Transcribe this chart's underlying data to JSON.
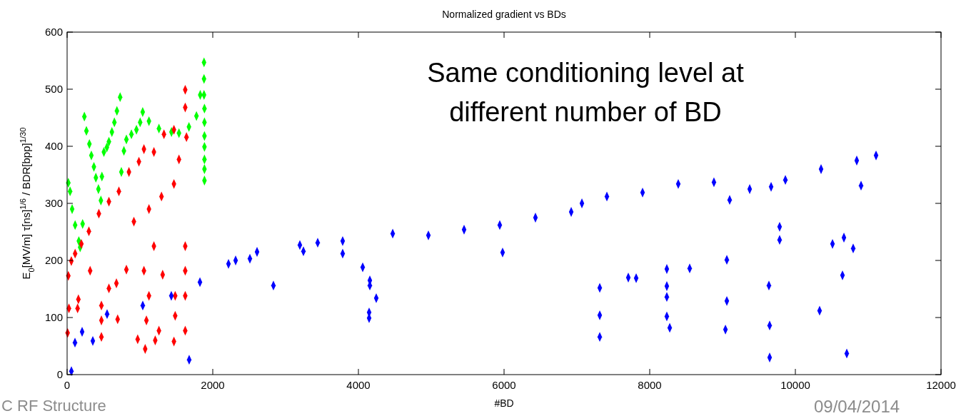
{
  "chart_data": {
    "type": "scatter",
    "title": "Normalized gradient vs BDs",
    "xlabel": "#BD",
    "ylabel": "E$_{0}$[MV/m] τ[ns]$^{1/6}$ / BDR[bpp]$^{1/30}$",
    "annotations": [
      "Same conditioning level at different number of BD",
      "C RF Structure",
      "09/04/2014"
    ],
    "xlim": [
      0,
      12000
    ],
    "ylim": [
      0,
      600
    ],
    "xticks": [
      0,
      2000,
      4000,
      6000,
      8000,
      10000,
      12000
    ],
    "yticks": [
      0,
      100,
      200,
      300,
      400,
      500,
      600
    ],
    "grid": false,
    "marker": "diamond",
    "series": [
      {
        "color": "#00ff00",
        "x": [
          17,
          41,
          69,
          110,
          161,
          179,
          213,
          237,
          265,
          306,
          333,
          368,
          395,
          430,
          464,
          478,
          505,
          546,
          574,
          615,
          649,
          684,
          728,
          745,
          780,
          814,
          883,
          952,
          1003,
          1038,
          1124,
          1261,
          1433,
          1536,
          1673,
          1776,
          1828,
          1880,
          1880,
          1880,
          1886,
          1886,
          1886,
          1886,
          1886,
          1886,
          1886
        ],
        "values": [
          336,
          321,
          290,
          262,
          234,
          223,
          264,
          452,
          427,
          404,
          384,
          364,
          345,
          325,
          305,
          347,
          390,
          398,
          408,
          425,
          442,
          462,
          486,
          355,
          392,
          412,
          421,
          429,
          442,
          460,
          444,
          431,
          425,
          423,
          434,
          453,
          490,
          547,
          518,
          490,
          466,
          442,
          418,
          399,
          377,
          360,
          340
        ]
      },
      {
        "color": "#ff0000",
        "x": [
          7,
          25,
          17,
          58,
          110,
          196,
          299,
          436,
          574,
          711,
          849,
          986,
          1055,
          1192,
          1330,
          1467,
          1622,
          1622,
          1639,
          144,
          155,
          316,
          471,
          471,
          471,
          574,
          694,
          677,
          814,
          969,
          1072,
          1089,
          1124,
          1210,
          1261,
          1312,
          1467,
          1484,
          1484,
          1622,
          1622,
          1622,
          1622,
          917,
          1124,
          1296,
          1467,
          1536,
          1192,
          1055
        ],
        "values": [
          73,
          116,
          173,
          199,
          212,
          229,
          251,
          282,
          303,
          321,
          355,
          373,
          395,
          390,
          421,
          429,
          499,
          468,
          416,
          116,
          132,
          182,
          95,
          66,
          121,
          151,
          97,
          160,
          184,
          62,
          45,
          95,
          138,
          60,
          77,
          175,
          58,
          103,
          138,
          77,
          138,
          182,
          225,
          268,
          290,
          312,
          334,
          377,
          225,
          182
        ]
      },
      {
        "color": "#0000ff",
        "x": [
          59,
          108,
          206,
          549,
          1039,
          1431,
          1824,
          2216,
          2608,
          3196,
          3441,
          3784,
          3784,
          4471,
          4961,
          5451,
          5941,
          6431,
          6922,
          7069,
          7412,
          7902,
          8392,
          8882,
          9373,
          9667,
          9863,
          10353,
          10843,
          11108,
          1676,
          353,
          2833,
          4059,
          4157,
          4157,
          4147,
          4147,
          4245,
          5980,
          7314,
          7314,
          7314,
          7706,
          7814,
          8235,
          8235,
          8235,
          8235,
          8275,
          8549,
          9059,
          9059,
          9040,
          9637,
          9647,
          9647,
          9784,
          9784,
          10647,
          10706,
          10667,
          10794,
          10902,
          10333,
          10510,
          9098,
          3245,
          2314,
          2510
        ],
        "values": [
          6,
          56,
          75,
          106,
          121,
          138,
          162,
          194,
          215,
          227,
          231,
          212,
          234,
          247,
          244,
          254,
          262,
          275,
          285,
          300,
          312,
          319,
          334,
          337,
          325,
          329,
          341,
          360,
          375,
          384,
          26,
          59,
          156,
          188,
          165,
          156,
          109,
          99,
          134,
          214,
          152,
          104,
          66,
          170,
          169,
          185,
          155,
          136,
          102,
          82,
          186,
          201,
          129,
          79,
          156,
          86,
          30,
          236,
          259,
          174,
          37,
          240,
          221,
          331,
          112,
          229,
          306,
          216,
          200,
          203
        ]
      }
    ]
  }
}
